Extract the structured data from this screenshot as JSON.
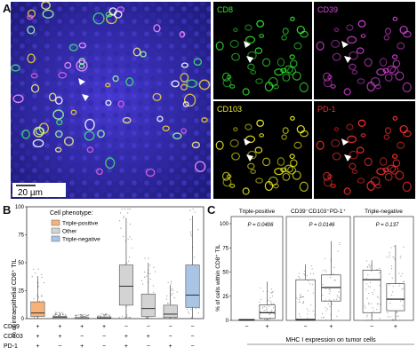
{
  "panel_a": {
    "letter": "A",
    "scale_bar_label": "20 µm",
    "channels": [
      {
        "label": "CD8",
        "color": "#32e632"
      },
      {
        "label": "CD39",
        "color": "#e040e0"
      },
      {
        "label": "CD103",
        "color": "#f0f020"
      },
      {
        "label": "PD-1",
        "color": "#ff2a2a"
      }
    ]
  },
  "panel_b": {
    "letter": "B",
    "legend_title": "Cell phenotype:",
    "legend": [
      {
        "label": "Triple-positive",
        "color": "#f7b27a"
      },
      {
        "label": "Other",
        "color": "#d3d3d3"
      },
      {
        "label": "Triple-negative",
        "color": "#a9c4e4"
      }
    ],
    "row_labels": [
      "CD39",
      "CD103",
      "PD-1"
    ],
    "signs": [
      [
        "+",
        "+",
        "+"
      ],
      [
        "+",
        "+",
        "−"
      ],
      [
        "+",
        "−",
        "+"
      ],
      [
        "+",
        "−",
        "−"
      ],
      [
        "−",
        "+",
        "+"
      ],
      [
        "−",
        "+",
        "−"
      ],
      [
        "−",
        "−",
        "+"
      ],
      [
        "−",
        "−",
        "−"
      ]
    ],
    "y_ticks": [
      "0",
      "25",
      "50",
      "75",
      "100"
    ]
  },
  "panel_c": {
    "letter": "C",
    "x_axis_label": "MHC I expression on tumor cells",
    "y_ticks": [
      "0",
      "25",
      "50",
      "75",
      "100"
    ],
    "x_signs": [
      "−",
      "+"
    ],
    "subpanels": [
      {
        "title": "Triple-positive",
        "p_value": "P = 0.0406"
      },
      {
        "title": "CD39⁻CD103⁺PD-1⁺",
        "p_value": "P = 0.0146"
      },
      {
        "title": "Triple-negative",
        "p_value": "P = 0.137"
      }
    ]
  },
  "chart_data": [
    {
      "type": "box",
      "title": "",
      "xlabel": "",
      "ylabel": "% of intraepithelial CD8⁺ TIL",
      "ylim": [
        0,
        100
      ],
      "categories": [
        "CD39+ CD103+ PD-1+",
        "CD39+ CD103+ PD-1−",
        "CD39+ CD103− PD-1+",
        "CD39+ CD103− PD-1−",
        "CD39− CD103+ PD-1+",
        "CD39− CD103+ PD-1−",
        "CD39− CD103− PD-1+",
        "CD39− CD103− PD-1−"
      ],
      "series": [
        {
          "group": "Triple-positive",
          "q1": 2,
          "median": 5,
          "q3": 15,
          "whisker_low": 0,
          "whisker_high": 38
        },
        {
          "group": "Other",
          "q1": 0,
          "median": 1,
          "q3": 2,
          "whisker_low": 0,
          "whisker_high": 5
        },
        {
          "group": "Other",
          "q1": 0,
          "median": 0,
          "q3": 1,
          "whisker_low": 0,
          "whisker_high": 3
        },
        {
          "group": "Other",
          "q1": 0,
          "median": 0.5,
          "q3": 1.5,
          "whisker_low": 0,
          "whisker_high": 4
        },
        {
          "group": "Other",
          "q1": 12,
          "median": 29,
          "q3": 48,
          "whisker_low": 0,
          "whisker_high": 90
        },
        {
          "group": "Other",
          "q1": 2,
          "median": 9,
          "q3": 22,
          "whisker_low": 0,
          "whisker_high": 50
        },
        {
          "group": "Other",
          "q1": 1,
          "median": 4,
          "q3": 12,
          "whisker_low": 0,
          "whisker_high": 30
        },
        {
          "group": "Triple-negative",
          "q1": 10,
          "median": 21,
          "q3": 48,
          "whisker_low": 0,
          "whisker_high": 92
        }
      ]
    },
    {
      "type": "box",
      "title": "",
      "xlabel": "MHC I expression on tumor cells",
      "ylabel": "% of cells within CD8⁺ TIL",
      "ylim": [
        0,
        100
      ],
      "categories": [
        "−",
        "+"
      ],
      "subplots": [
        {
          "title": "Triple-positive",
          "p_value": "P = 0.0406",
          "boxes": [
            {
              "q1": 0,
              "median": 0.5,
              "q3": 1,
              "whisker_low": 0,
              "whisker_high": 1
            },
            {
              "q1": 2,
              "median": 8,
              "q3": 16,
              "whisker_low": 0,
              "whisker_high": 40
            }
          ]
        },
        {
          "title": "CD39⁻CD103⁺PD-1⁺",
          "p_value": "P = 0.0146",
          "boxes": [
            {
              "q1": 0,
              "median": 1,
              "q3": 42,
              "whisker_low": 0,
              "whisker_high": 58
            },
            {
              "q1": 20,
              "median": 34,
              "q3": 47,
              "whisker_low": 0,
              "whisker_high": 82
            }
          ]
        },
        {
          "title": "Triple-negative",
          "p_value": "P = 0.137",
          "boxes": [
            {
              "q1": 8,
              "median": 42,
              "q3": 52,
              "whisker_low": 0,
              "whisker_high": 62
            },
            {
              "q1": 10,
              "median": 22,
              "q3": 38,
              "whisker_low": 0,
              "whisker_high": 78
            }
          ]
        }
      ]
    }
  ]
}
